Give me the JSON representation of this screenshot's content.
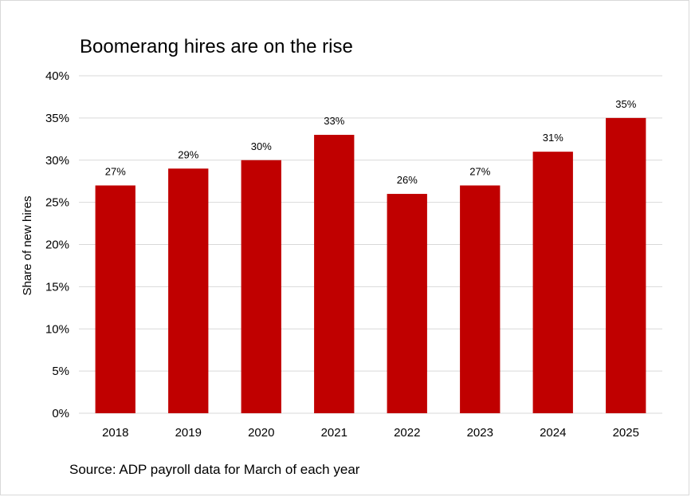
{
  "chart_data": {
    "type": "bar",
    "title": "Boomerang hires are on the rise",
    "xlabel": "",
    "ylabel": "Share of new hires",
    "categories": [
      "2018",
      "2019",
      "2020",
      "2021",
      "2022",
      "2023",
      "2024",
      "2025"
    ],
    "values": [
      27,
      29,
      30,
      33,
      26,
      27,
      31,
      35
    ],
    "data_labels": [
      "27%",
      "29%",
      "30%",
      "33%",
      "26%",
      "27%",
      "31%",
      "35%"
    ],
    "ylim": [
      0,
      40
    ],
    "yticks": [
      0,
      5,
      10,
      15,
      20,
      25,
      30,
      35,
      40
    ],
    "ytick_labels": [
      "0%",
      "5%",
      "10%",
      "15%",
      "20%",
      "25%",
      "30%",
      "35%",
      "40%"
    ],
    "grid": true,
    "legend": "none",
    "bar_color": "#C00000",
    "gridline_color": "#D9D9D9",
    "source": "Source: ADP payroll data for March of each year"
  }
}
